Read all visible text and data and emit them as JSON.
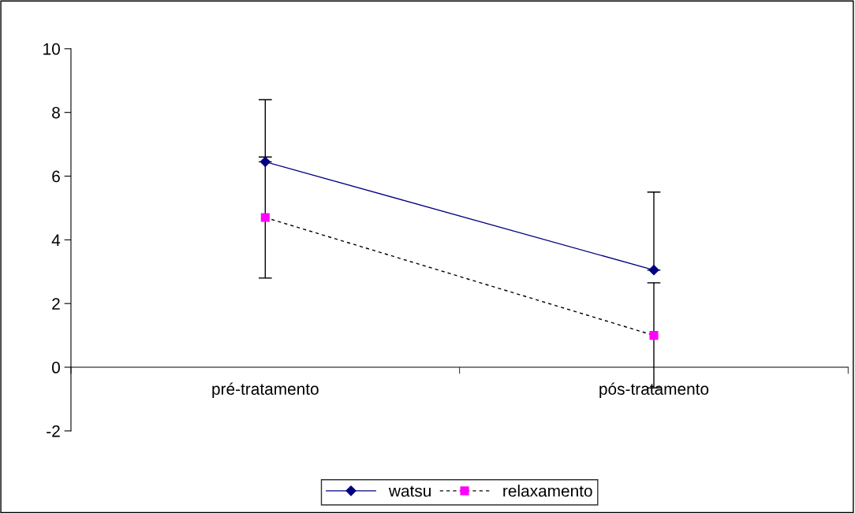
{
  "chart_data": {
    "type": "line",
    "categories": [
      "pré-tratamento",
      "pós-tratamento"
    ],
    "series": [
      {
        "name": "watsu",
        "color": "#000080",
        "values": [
          6.45,
          3.05
        ],
        "errors": [
          [
            6.45,
            8.4
          ],
          [
            3.05,
            5.5
          ]
        ],
        "marker": "diamond",
        "line_style": "solid"
      },
      {
        "name": "relaxamento",
        "color": "#ff00ff",
        "values": [
          4.7,
          1.0
        ],
        "errors": [
          1.9,
          1.65
        ],
        "marker": "square",
        "line_style": "dashed"
      }
    ],
    "ylim": [
      -2,
      10
    ],
    "yticks": [
      -2,
      0,
      2,
      4,
      6,
      8,
      10
    ],
    "grid": false,
    "legend": "bottom"
  }
}
